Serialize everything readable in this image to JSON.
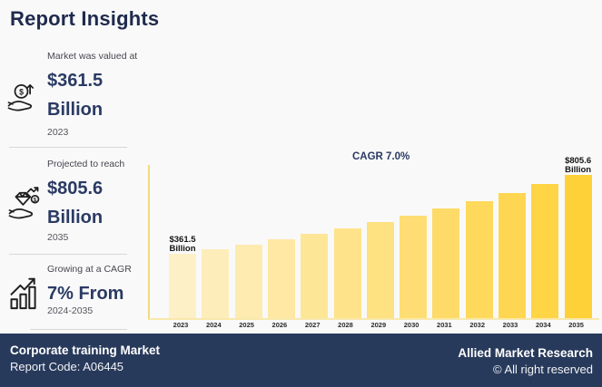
{
  "page": {
    "title": "Report Insights",
    "background": "#F9F9F9",
    "title_color": "#1F2A4D",
    "accent_navy": "#2A3A63"
  },
  "sidebar": {
    "stats": [
      {
        "icon": "money-hand-icon",
        "label": "Market was valued at",
        "value": "$361.5",
        "unit": "Billion",
        "period": "2023"
      },
      {
        "icon": "diamond-hand-icon",
        "label": "Projected to reach",
        "value": "$805.6",
        "unit": "Billion",
        "period": "2035"
      },
      {
        "icon": "growth-chart-icon",
        "label": "Growing at a CAGR",
        "value": "7% From",
        "unit": "",
        "period": "2024-2035"
      }
    ]
  },
  "chart_data": {
    "type": "bar",
    "title": "CAGR 7.0%",
    "categories": [
      "2023",
      "2024",
      "2025",
      "2026",
      "2027",
      "2028",
      "2029",
      "2030",
      "2031",
      "2032",
      "2033",
      "2034",
      "2035"
    ],
    "values": [
      361.5,
      386.4,
      413.1,
      441.6,
      472.1,
      504.7,
      539.5,
      576.7,
      616.5,
      659.1,
      704.6,
      753.2,
      805.6
    ],
    "values_note": "USD Billion; interior years estimated from 7.0% CAGR between labeled endpoints 361.5 (2023) and 805.6 (2035)",
    "first_bar_label": {
      "value": "$361.5",
      "unit": "Billion"
    },
    "last_bar_label": {
      "value": "$805.6",
      "unit": "Billion"
    },
    "bar_colors": [
      "#FDF0C6",
      "#FDEDBA",
      "#FDEBAF",
      "#FEE8A3",
      "#FEE697",
      "#FEE38B",
      "#FEE180",
      "#FEDE74",
      "#FEDB68",
      "#FFD95C",
      "#FFD651",
      "#FFD445",
      "#FFD139"
    ],
    "axis_left_color": "#F1D97F",
    "axis_bottom_color": "#F7E8AC",
    "xlabel": "",
    "ylabel": "",
    "ylim": [
      0,
      860
    ],
    "grid": false,
    "legend": "none"
  },
  "footer": {
    "market_name": "Corporate training Market",
    "report_code": "Report Code: A06445",
    "brand": "Allied Market Research",
    "rights": "© All right reserved",
    "background": "#283A5B"
  }
}
